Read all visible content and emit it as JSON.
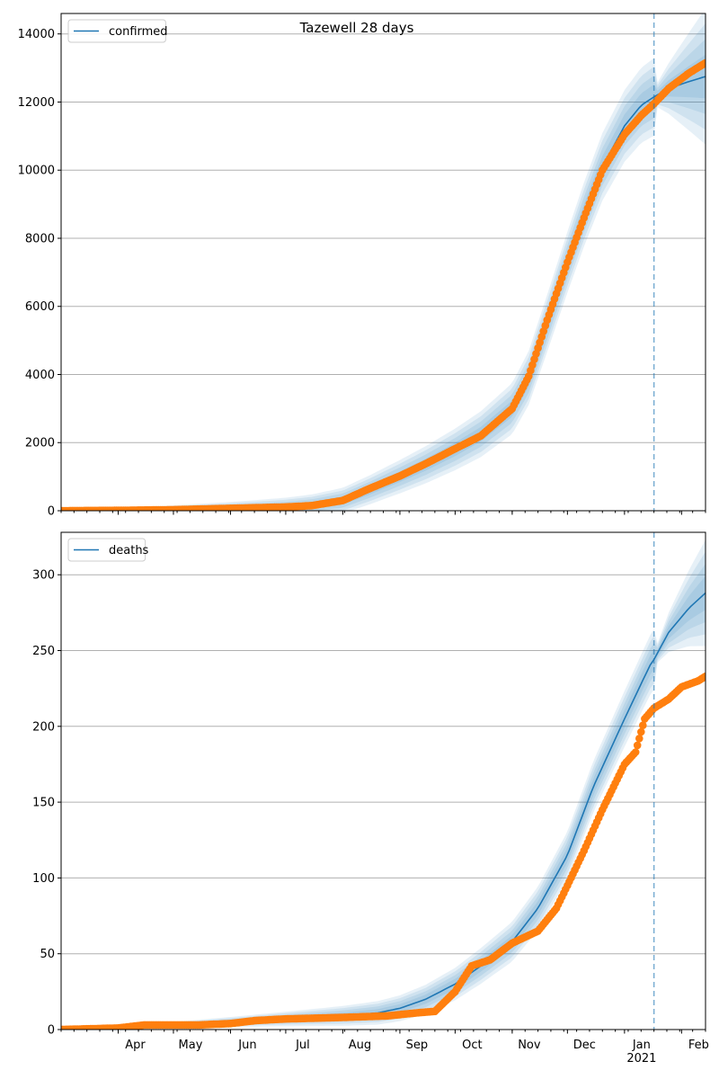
{
  "chart_data": [
    {
      "type": "line",
      "title": "Tazewell 28 days",
      "xlabel": "",
      "ylabel": "",
      "x_axis": {
        "type": "date",
        "range": [
          "2020-03-01",
          "2021-02-14"
        ],
        "major_ticks": [
          {
            "date": "2020-04-01",
            "label": "Apr"
          },
          {
            "date": "2020-05-01",
            "label": "May"
          },
          {
            "date": "2020-06-01",
            "label": "Jun"
          },
          {
            "date": "2020-07-01",
            "label": "Jul"
          },
          {
            "date": "2020-08-01",
            "label": "Aug"
          },
          {
            "date": "2020-09-01",
            "label": "Sep"
          },
          {
            "date": "2020-10-01",
            "label": "Oct"
          },
          {
            "date": "2020-11-01",
            "label": "Nov"
          },
          {
            "date": "2020-12-01",
            "label": "Dec"
          },
          {
            "date": "2021-01-01",
            "label": "Jan\n2021"
          },
          {
            "date": "2021-02-01",
            "label": "Feb"
          }
        ],
        "tick_labels_shown": false
      },
      "ylim": [
        0,
        14600
      ],
      "yticks": [
        0,
        2000,
        4000,
        6000,
        8000,
        10000,
        12000,
        14000
      ],
      "grid": "y",
      "legend": {
        "position": "top-left",
        "entries": [
          "confirmed"
        ]
      },
      "vline_date": "2021-01-17",
      "colors": {
        "model": "#1f77b4",
        "observed": "#ff7f0e",
        "band": "#1f77b4",
        "vline": "#1f77b4"
      },
      "series": [
        {
          "name": "confirmed",
          "role": "model",
          "points": [
            [
              "2020-03-01",
              10
            ],
            [
              "2020-04-01",
              20
            ],
            [
              "2020-05-01",
              40
            ],
            [
              "2020-06-01",
              70
            ],
            [
              "2020-07-01",
              110
            ],
            [
              "2020-07-15",
              160
            ],
            [
              "2020-08-01",
              300
            ],
            [
              "2020-08-15",
              600
            ],
            [
              "2020-09-01",
              1000
            ],
            [
              "2020-09-15",
              1350
            ],
            [
              "2020-10-01",
              1800
            ],
            [
              "2020-10-15",
              2250
            ],
            [
              "2020-11-01",
              3000
            ],
            [
              "2020-11-10",
              3900
            ],
            [
              "2020-11-20",
              5500
            ],
            [
              "2020-12-01",
              7300
            ],
            [
              "2020-12-10",
              8700
            ],
            [
              "2020-12-20",
              10100
            ],
            [
              "2021-01-01",
              11300
            ],
            [
              "2021-01-10",
              11900
            ],
            [
              "2021-01-17",
              12150
            ],
            [
              "2021-01-25",
              12400
            ],
            [
              "2021-02-05",
              12600
            ],
            [
              "2021-02-14",
              12750
            ]
          ],
          "band_halfwidth_at_end": 2000
        },
        {
          "name": "",
          "role": "observed",
          "points": [
            [
              "2020-03-01",
              0
            ],
            [
              "2020-04-01",
              10
            ],
            [
              "2020-05-01",
              30
            ],
            [
              "2020-06-01",
              70
            ],
            [
              "2020-07-01",
              110
            ],
            [
              "2020-07-15",
              150
            ],
            [
              "2020-08-01",
              300
            ],
            [
              "2020-08-15",
              640
            ],
            [
              "2020-09-01",
              1020
            ],
            [
              "2020-09-15",
              1380
            ],
            [
              "2020-10-01",
              1820
            ],
            [
              "2020-10-15",
              2200
            ],
            [
              "2020-11-01",
              3000
            ],
            [
              "2020-11-10",
              3950
            ],
            [
              "2020-11-20",
              5600
            ],
            [
              "2020-12-01",
              7300
            ],
            [
              "2020-12-10",
              8600
            ],
            [
              "2020-12-20",
              10000
            ],
            [
              "2021-01-01",
              11050
            ],
            [
              "2021-01-10",
              11600
            ],
            [
              "2021-01-17",
              11950
            ],
            [
              "2021-01-25",
              12400
            ],
            [
              "2021-02-05",
              12850
            ],
            [
              "2021-02-14",
              13150
            ]
          ]
        }
      ]
    },
    {
      "type": "line",
      "title": "",
      "xlabel": "",
      "ylabel": "",
      "x_axis": {
        "type": "date",
        "range": [
          "2020-03-01",
          "2021-02-14"
        ],
        "major_ticks": [
          {
            "date": "2020-04-01",
            "label": "Apr"
          },
          {
            "date": "2020-05-01",
            "label": "May"
          },
          {
            "date": "2020-06-01",
            "label": "Jun"
          },
          {
            "date": "2020-07-01",
            "label": "Jul"
          },
          {
            "date": "2020-08-01",
            "label": "Aug"
          },
          {
            "date": "2020-09-01",
            "label": "Sep"
          },
          {
            "date": "2020-10-01",
            "label": "Oct"
          },
          {
            "date": "2020-11-01",
            "label": "Nov"
          },
          {
            "date": "2020-12-01",
            "label": "Dec"
          },
          {
            "date": "2021-01-01",
            "label": "Jan\n2021"
          },
          {
            "date": "2021-02-01",
            "label": "Feb"
          }
        ],
        "tick_labels_shown": true
      },
      "ylim": [
        0,
        328
      ],
      "yticks": [
        0,
        50,
        100,
        150,
        200,
        250,
        300
      ],
      "grid": "y",
      "legend": {
        "position": "top-left",
        "entries": [
          "deaths"
        ]
      },
      "vline_date": "2021-01-17",
      "colors": {
        "model": "#1f77b4",
        "observed": "#ff7f0e",
        "band": "#1f77b4",
        "vline": "#1f77b4"
      },
      "series": [
        {
          "name": "deaths",
          "role": "model",
          "points": [
            [
              "2020-03-01",
              0
            ],
            [
              "2020-04-01",
              1
            ],
            [
              "2020-05-01",
              3
            ],
            [
              "2020-06-01",
              5
            ],
            [
              "2020-07-01",
              7
            ],
            [
              "2020-08-01",
              9
            ],
            [
              "2020-08-20",
              11
            ],
            [
              "2020-09-01",
              14
            ],
            [
              "2020-09-15",
              20
            ],
            [
              "2020-10-01",
              30
            ],
            [
              "2020-10-15",
              42
            ],
            [
              "2020-11-01",
              58
            ],
            [
              "2020-11-15",
              80
            ],
            [
              "2020-12-01",
              115
            ],
            [
              "2020-12-15",
              160
            ],
            [
              "2021-01-01",
              205
            ],
            [
              "2021-01-10",
              228
            ],
            [
              "2021-01-16",
              243
            ],
            [
              "2021-01-17",
              244
            ],
            [
              "2021-01-25",
              262
            ],
            [
              "2021-02-05",
              278
            ],
            [
              "2021-02-14",
              288
            ]
          ],
          "band_halfwidth_at_end": 35
        },
        {
          "name": "",
          "role": "observed",
          "points": [
            [
              "2020-03-01",
              0
            ],
            [
              "2020-04-01",
              1
            ],
            [
              "2020-04-15",
              3
            ],
            [
              "2020-05-15",
              3
            ],
            [
              "2020-06-01",
              4
            ],
            [
              "2020-06-15",
              6
            ],
            [
              "2020-07-01",
              7
            ],
            [
              "2020-08-01",
              8
            ],
            [
              "2020-08-25",
              9
            ],
            [
              "2020-09-10",
              11
            ],
            [
              "2020-09-20",
              12
            ],
            [
              "2020-10-01",
              25
            ],
            [
              "2020-10-10",
              42
            ],
            [
              "2020-10-20",
              46
            ],
            [
              "2020-11-01",
              57
            ],
            [
              "2020-11-15",
              65
            ],
            [
              "2020-11-25",
              80
            ],
            [
              "2020-12-01",
              95
            ],
            [
              "2020-12-10",
              118
            ],
            [
              "2020-12-20",
              145
            ],
            [
              "2021-01-01",
              175
            ],
            [
              "2021-01-07",
              183
            ],
            [
              "2021-01-09",
              192
            ],
            [
              "2021-01-12",
              205
            ],
            [
              "2021-01-17",
              212
            ],
            [
              "2021-01-25",
              218
            ],
            [
              "2021-02-01",
              226
            ],
            [
              "2021-02-10",
              230
            ],
            [
              "2021-02-14",
              233
            ]
          ]
        }
      ]
    }
  ]
}
